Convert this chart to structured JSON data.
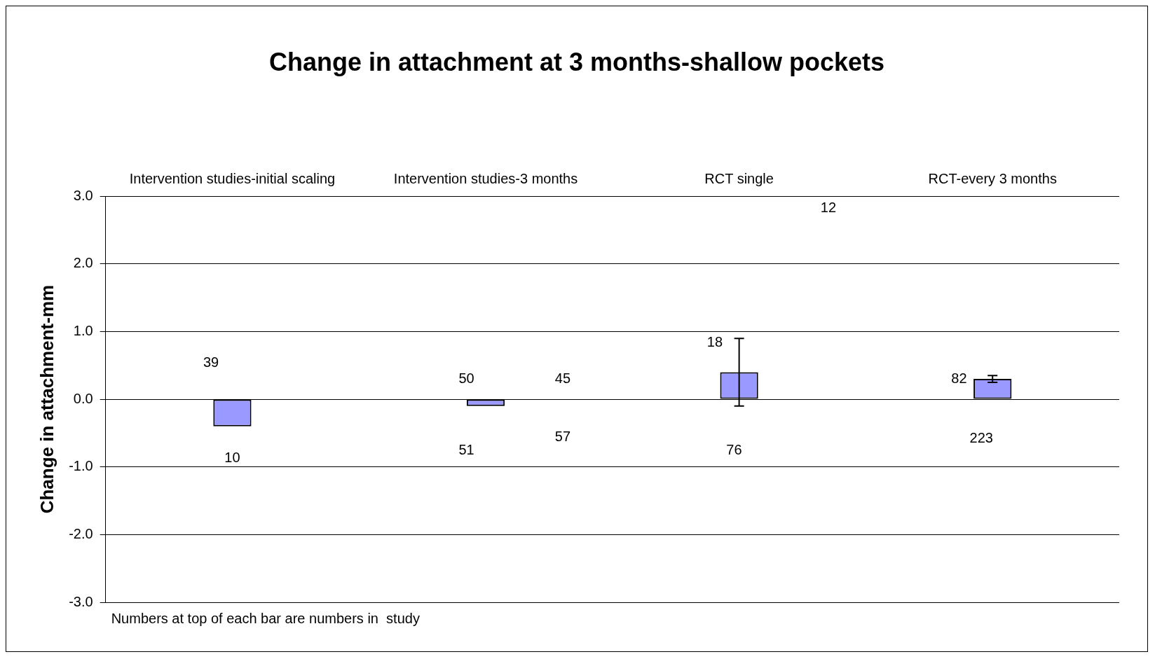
{
  "chart_data": {
    "type": "bar",
    "title": "Change in attachment at 3 months-shallow pockets",
    "ylabel": "Change in attachment-mm",
    "categories": [
      "Intervention studies-initial scaling",
      "Intervention studies-3 months",
      "RCT single",
      "RCT-every 3 months"
    ],
    "values": [
      -0.4,
      -0.1,
      0.4,
      0.3
    ],
    "color": "#9999ff",
    "errors": [
      null,
      null,
      [
        -0.1,
        0.9
      ],
      [
        0.25,
        0.35
      ]
    ],
    "ylim": [
      -3,
      3
    ],
    "yticks": [
      {
        "value": -3,
        "label": "-3.0"
      },
      {
        "value": -2,
        "label": "-2.0"
      },
      {
        "value": -1,
        "label": "-1.0"
      },
      {
        "value": 0,
        "label": "0.0"
      },
      {
        "value": 1,
        "label": "1.0"
      },
      {
        "value": 2,
        "label": "2.0"
      },
      {
        "value": 3,
        "label": "3.0"
      }
    ],
    "grid": "y",
    "legend": false,
    "annotations": [
      "39",
      "10",
      "50",
      "45",
      "51",
      "57",
      "18",
      "76",
      "12",
      "82",
      "223",
      "Numbers at top of each bar are numbers in  study"
    ]
  }
}
